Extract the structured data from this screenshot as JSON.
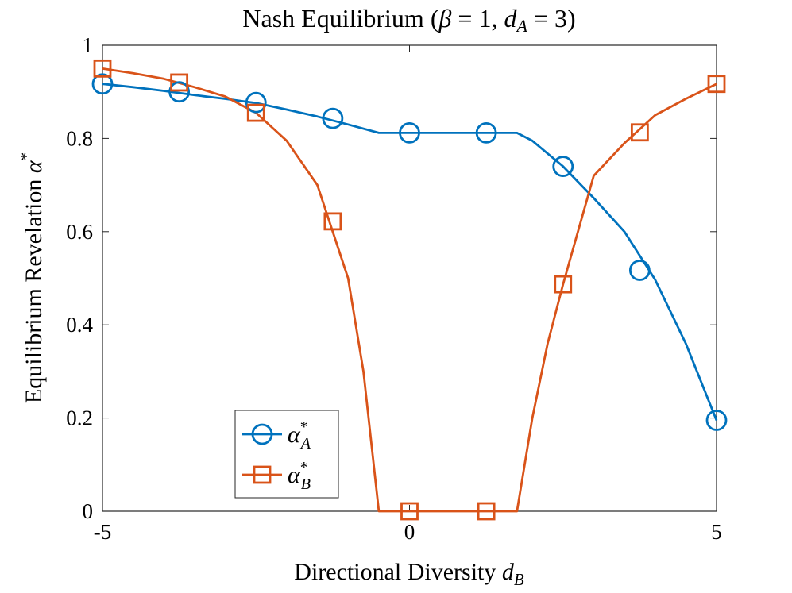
{
  "chart_data": {
    "type": "line",
    "title": "Nash Equilibrium (β = 1, d_A = 3)",
    "title_parts": {
      "prefix": "Nash Equilibrium (",
      "beta": "β",
      "eq1": " = 1, ",
      "d": "d",
      "d_sub": "A",
      "eq2": " = 3)"
    },
    "xlabel": "Directional Diversity d_B",
    "xlabel_parts": {
      "text": "Directional Diversity ",
      "var": "d",
      "sub": "B"
    },
    "ylabel": "Equilibrium Revelation α*",
    "ylabel_parts": {
      "text": "Equilibrium Revelation ",
      "var": "α",
      "sup": "*"
    },
    "xlim": [
      -5,
      5
    ],
    "ylim": [
      0,
      1
    ],
    "xticks": [
      -5,
      0,
      5
    ],
    "xtick_labels": [
      "-5",
      "0",
      "5"
    ],
    "yticks": [
      0,
      0.2,
      0.4,
      0.6,
      0.8,
      1
    ],
    "ytick_labels": [
      "0",
      "0.2",
      "0.4",
      "0.6",
      "0.8",
      "1"
    ],
    "grid": false,
    "legend_position": "bottom-left",
    "series": [
      {
        "name": "α*_A",
        "legend": {
          "var": "α",
          "sup": "*",
          "sub": "A"
        },
        "color": "#0072BD",
        "marker": "circle",
        "x": [
          -5,
          -4.5,
          -4,
          -3.5,
          -3,
          -2.5,
          -2,
          -1.5,
          -1,
          -0.5,
          0,
          0.5,
          1,
          1.5,
          1.75,
          2,
          2.5,
          3,
          3.5,
          4,
          4.5,
          5
        ],
        "y": [
          0.917,
          0.91,
          0.902,
          0.893,
          0.885,
          0.876,
          0.862,
          0.847,
          0.83,
          0.812,
          0.812,
          0.812,
          0.812,
          0.812,
          0.812,
          0.795,
          0.74,
          0.672,
          0.6,
          0.497,
          0.36,
          0.195
        ],
        "marker_x": [
          -5,
          -3.75,
          -2.5,
          -1.25,
          0,
          1.25,
          2.5,
          3.75,
          5
        ],
        "marker_y": [
          0.917,
          0.9,
          0.877,
          0.843,
          0.812,
          0.812,
          0.74,
          0.517,
          0.195
        ]
      },
      {
        "name": "α*_B",
        "legend": {
          "var": "α",
          "sup": "*",
          "sub": "B"
        },
        "color": "#D95319",
        "marker": "square",
        "x": [
          -5,
          -4.5,
          -4,
          -3.5,
          -3,
          -2.5,
          -2,
          -1.5,
          -1,
          -0.75,
          -0.5,
          0,
          0.5,
          1,
          1.5,
          1.75,
          2,
          2.25,
          2.5,
          3,
          3.5,
          4,
          4.5,
          5
        ],
        "y": [
          0.95,
          0.94,
          0.928,
          0.91,
          0.89,
          0.855,
          0.795,
          0.7,
          0.5,
          0.3,
          0,
          0,
          0,
          0,
          0,
          0,
          0.2,
          0.36,
          0.487,
          0.72,
          0.79,
          0.85,
          0.885,
          0.917
        ],
        "marker_x": [
          -5,
          -3.75,
          -2.5,
          -1.25,
          0,
          1.25,
          2.5,
          3.75,
          5
        ],
        "marker_y": [
          0.95,
          0.92,
          0.855,
          0.622,
          0,
          0,
          0.487,
          0.813,
          0.917
        ]
      }
    ]
  }
}
